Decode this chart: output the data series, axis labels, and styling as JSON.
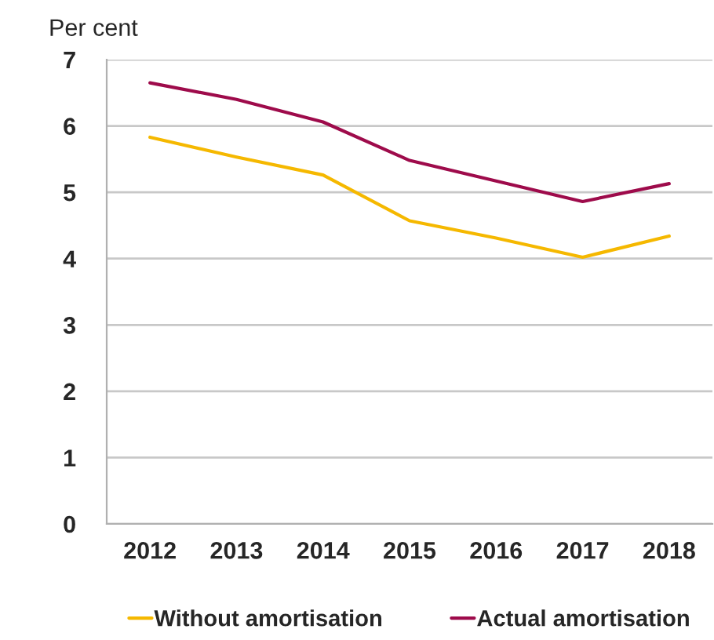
{
  "chart_data": {
    "type": "line",
    "ylabel": "Per cent",
    "categories": [
      "2012",
      "2013",
      "2014",
      "2015",
      "2016",
      "2017",
      "2018"
    ],
    "series": [
      {
        "name": "Without amortisation",
        "color": "#f5b800",
        "values": [
          5.83,
          5.53,
          5.26,
          4.57,
          4.31,
          4.02,
          4.34
        ]
      },
      {
        "name": "Actual amortisation",
        "color": "#9e0b4b",
        "values": [
          6.65,
          6.4,
          6.06,
          5.48,
          5.17,
          4.86,
          5.13
        ]
      }
    ],
    "ylim": [
      0,
      7
    ],
    "yticks": [
      0,
      1,
      2,
      3,
      4,
      5,
      6,
      7
    ],
    "grid": "y",
    "legend": "bottom",
    "marker": "none",
    "line_style": "solid"
  }
}
